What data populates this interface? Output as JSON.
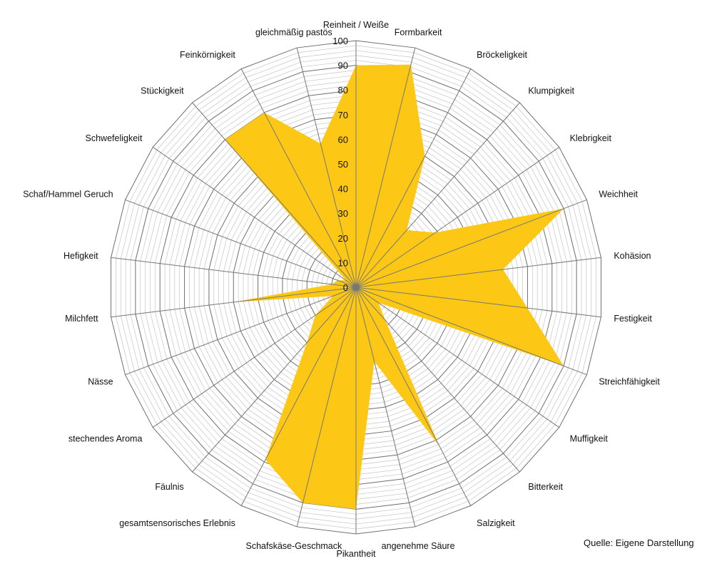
{
  "chart_data": {
    "type": "radar",
    "title": "",
    "axes": [
      "Reinheit / Weiße",
      "Formbarkeit",
      "Bröckeligkeit",
      "Klumpigkeit",
      "Klebrigkeit",
      "Weichheit",
      "Kohäsion",
      "Festigkeit",
      "Streichfähigkeit",
      "Muffigkeit",
      "Bitterkeit",
      "Salzigkeit",
      "angenehme Säure",
      "Pikantheit",
      "Schafskäse-Geschmack",
      "gesamtsensorisches Erlebnis",
      "Fäulnis",
      "stechendes Aroma",
      "Nässe",
      "Milchfett",
      "Hefigkeit",
      "Schaf/Hammel Geruch",
      "Schwefeligkeit",
      "Stückigkeit",
      "Feinkörnigkeit",
      "gleichmäßig pastös"
    ],
    "series": [
      {
        "name": "",
        "color": "#FDC815",
        "values": [
          90,
          93,
          60,
          31,
          39,
          90,
          60,
          70,
          90,
          11,
          18,
          73,
          31,
          90,
          90,
          79,
          30,
          20,
          10,
          50,
          10,
          8,
          5,
          80,
          80,
          60
        ]
      }
    ],
    "rlim": [
      0,
      100
    ],
    "ticks": [
      "0",
      "10",
      "20",
      "30",
      "40",
      "50",
      "60",
      "70",
      "80",
      "90",
      "100"
    ],
    "grid": true,
    "legend": "none"
  },
  "source": "Quelle: Eigene Darstellung"
}
